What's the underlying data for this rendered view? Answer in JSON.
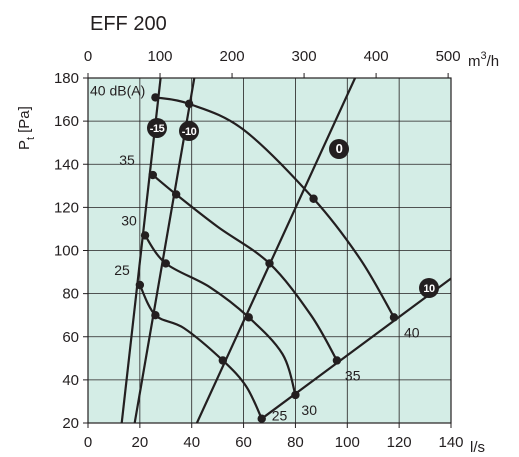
{
  "chart_data": {
    "type": "line",
    "title": "EFF 200",
    "xlabel": "l/s",
    "ylabel": "Pt [Pa]",
    "ylabel_main": "P",
    "ylabel_sub": "t",
    "ylabel_unit": "[Pa]",
    "top_xlabel": "m3/h",
    "top_xlabel_main": "m",
    "top_xlabel_sup": "3",
    "top_xlabel_rest": "/h",
    "xlim": [
      0,
      140
    ],
    "ylim": [
      20,
      180
    ],
    "top_xlim": [
      0,
      504
    ],
    "grid": true,
    "background_color": "#d4ede6",
    "line_color": "#231f20",
    "x_ticks": [
      0,
      20,
      40,
      60,
      80,
      100,
      120,
      140
    ],
    "x_tick_labels": [
      "0",
      "20",
      "40",
      "60",
      "80",
      "100",
      "120",
      "140"
    ],
    "y_ticks": [
      20,
      40,
      60,
      80,
      100,
      120,
      140,
      160,
      180
    ],
    "y_tick_labels": [
      "20",
      "40",
      "60",
      "80",
      "100",
      "120",
      "140",
      "160",
      "180"
    ],
    "top_ticks": [
      0,
      100,
      200,
      300,
      400,
      500
    ],
    "top_tick_labels": [
      "0",
      "100",
      "200",
      "300",
      "400",
      "500"
    ],
    "system_curves": [
      {
        "name": "-15",
        "points": [
          [
            13,
            20
          ],
          [
            28,
            180
          ]
        ]
      },
      {
        "name": "-10",
        "points": [
          [
            18,
            20
          ],
          [
            41,
            180
          ]
        ]
      },
      {
        "name": "0",
        "points": [
          [
            42,
            20
          ],
          [
            103,
            180
          ]
        ]
      },
      {
        "name": "10",
        "points": [
          [
            67,
            22
          ],
          [
            140,
            87
          ]
        ]
      }
    ],
    "sound_curves": [
      {
        "name": "40 dB(A)",
        "points": [
          [
            26,
            171
          ],
          [
            39,
            168
          ],
          [
            60,
            156
          ],
          [
            87,
            124
          ],
          [
            105,
            96
          ],
          [
            118,
            69
          ]
        ]
      },
      {
        "name": "35",
        "points": [
          [
            25,
            135
          ],
          [
            34,
            126
          ],
          [
            50,
            111
          ],
          [
            70,
            94
          ],
          [
            86,
            70
          ],
          [
            96,
            49
          ]
        ]
      },
      {
        "name": "30",
        "points": [
          [
            22,
            107
          ],
          [
            30,
            94
          ],
          [
            47,
            83
          ],
          [
            62,
            69
          ],
          [
            75,
            52
          ],
          [
            80,
            33
          ]
        ]
      },
      {
        "name": "25",
        "points": [
          [
            20,
            84
          ],
          [
            26,
            70
          ],
          [
            37,
            64
          ],
          [
            52,
            49
          ],
          [
            61,
            37
          ],
          [
            67,
            22
          ]
        ]
      }
    ],
    "markers": [
      [
        26,
        171
      ],
      [
        39,
        168
      ],
      [
        25,
        135
      ],
      [
        34,
        126
      ],
      [
        22,
        107
      ],
      [
        30,
        94
      ],
      [
        20,
        84
      ],
      [
        26,
        70
      ],
      [
        87,
        124
      ],
      [
        70,
        94
      ],
      [
        62,
        69
      ],
      [
        52,
        49
      ],
      [
        118,
        69
      ],
      [
        96,
        49
      ],
      [
        80,
        33
      ],
      [
        67,
        22
      ]
    ],
    "curve_labels": {
      "40 dB(A)": "40 dB(A)",
      "sound_35_left": "35",
      "sound_30_left": "30",
      "sound_25_left": "25",
      "sound_40_right": "40",
      "sound_35_right": "35",
      "sound_30_right": "30",
      "sound_25_right": "25",
      "badge_minus15": "-15",
      "badge_minus10": "-10",
      "badge_0": "0",
      "badge_10": "10"
    }
  }
}
